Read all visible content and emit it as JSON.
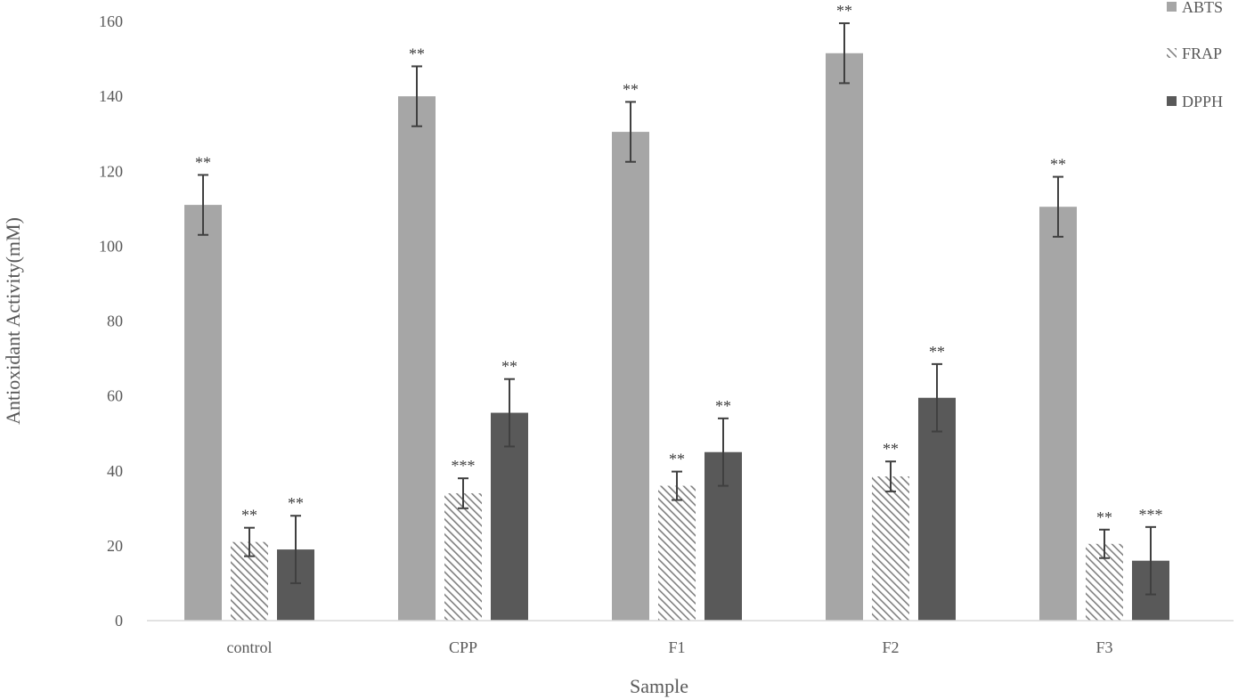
{
  "chart_data": {
    "type": "bar",
    "title": "",
    "xlabel": "Sample",
    "ylabel": "Antioxidant Activity(mM)",
    "ylim": [
      0,
      160
    ],
    "yticks": [
      0,
      20,
      40,
      60,
      80,
      100,
      120,
      140,
      160
    ],
    "categories": [
      "control",
      "CPP",
      "F1",
      "F2",
      "F3"
    ],
    "grid": false,
    "legend_position": "top-right",
    "series": [
      {
        "name": "ABTS",
        "color": "#a6a6a6",
        "pattern": "solid",
        "values": [
          111,
          140,
          130.5,
          151.5,
          110.5
        ],
        "errors": [
          8,
          8,
          8,
          8,
          8
        ],
        "significance": [
          "**",
          "**",
          "**",
          "**",
          "**"
        ]
      },
      {
        "name": "FRAP",
        "color": "#7f7f7f",
        "pattern": "hatched",
        "values": [
          21,
          34,
          36,
          38.5,
          20.5
        ],
        "errors": [
          3.8,
          4,
          3.8,
          4,
          3.8
        ],
        "significance": [
          "**",
          "***",
          "**",
          "**",
          "**"
        ]
      },
      {
        "name": "DPPH",
        "color": "#595959",
        "pattern": "solid",
        "values": [
          19,
          55.5,
          45,
          59.5,
          16
        ],
        "errors": [
          9,
          9,
          9,
          9,
          9
        ],
        "significance": [
          "**",
          "**",
          "**",
          "**",
          "***"
        ]
      }
    ]
  }
}
